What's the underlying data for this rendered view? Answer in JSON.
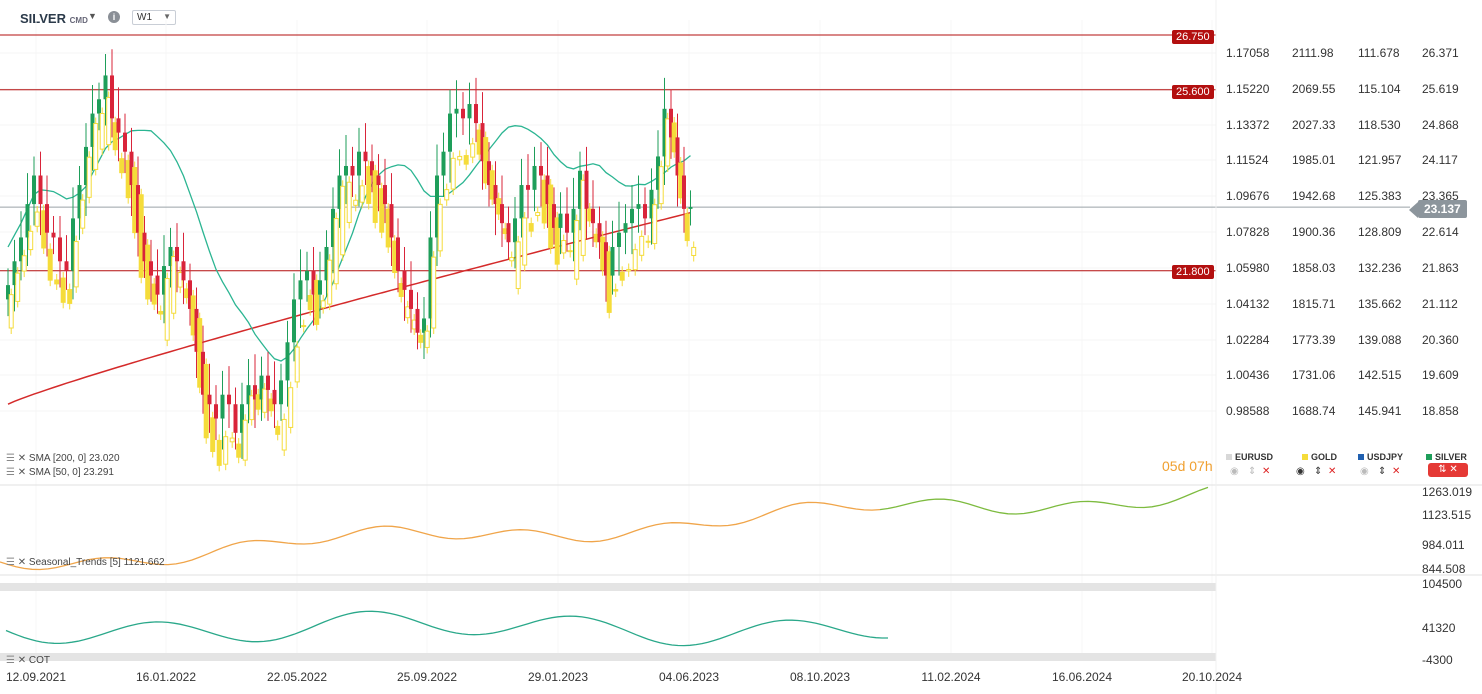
{
  "header": {
    "symbol": "SILVER",
    "symbol_suffix": "CMD",
    "timeframe": "W1"
  },
  "price_levels": [
    {
      "label": "26.750",
      "value": 26.75
    },
    {
      "label": "25.600",
      "value": 25.6
    },
    {
      "label": "21.800",
      "value": 21.8
    }
  ],
  "current_price": {
    "label": "23.137",
    "value": 23.137
  },
  "countdown": "05d 07h",
  "axes": {
    "eurusd": [
      "1.17058",
      "1.15220",
      "1.13372",
      "1.11524",
      "1.09676",
      "1.07828",
      "1.05980",
      "1.04132",
      "1.02284",
      "1.00436",
      "0.98588"
    ],
    "gold": [
      "2111.98",
      "2069.55",
      "2027.33",
      "1985.01",
      "1942.68",
      "1900.36",
      "1858.03",
      "1815.71",
      "1773.39",
      "1731.06",
      "1688.74"
    ],
    "usdjpy": [
      "111.678",
      "115.104",
      "118.530",
      "121.957",
      "125.383",
      "128.809",
      "132.236",
      "135.662",
      "139.088",
      "142.515",
      "145.941"
    ],
    "silver": [
      "26.371",
      "25.619",
      "24.868",
      "24.117",
      "23.365",
      "22.614",
      "21.863",
      "21.112",
      "20.360",
      "19.609",
      "18.858"
    ],
    "seasonal": [
      "1263.019",
      "1123.515",
      "984.011",
      "844.508"
    ],
    "cot": [
      "104500",
      "41320",
      "-4300"
    ]
  },
  "indicators": {
    "sma200": "SMA [200, 0]  23.020",
    "sma50": "SMA [50, 0]  23.291",
    "seasonal": "Seasonal_Trends [5]  1121.662",
    "cot": "COT"
  },
  "instruments": [
    "EURUSD",
    "GOLD",
    "USDJPY",
    "SILVER"
  ],
  "colors": {
    "bull_green": "#1e9e5a",
    "bear_red": "#d9243a",
    "gold_yellow": "#f5dc3a",
    "sma200": "#d42a2a",
    "sma50": "#2bb592",
    "seasonal_orange": "#f0a54a",
    "seasonal_green": "#7dbb3f",
    "cot_teal": "#2aa88a",
    "level_line": "#b30f0f"
  },
  "dates": [
    "12.09.2021",
    "16.01.2022",
    "22.05.2022",
    "25.09.2022",
    "29.01.2023",
    "04.06.2023",
    "08.10.2023",
    "11.02.2024",
    "16.06.2024",
    "20.10.2024"
  ],
  "chart_data": {
    "type": "candlestick",
    "title": "SILVER CMD",
    "timeframe": "W1",
    "ylim": [
      18.858,
      26.75
    ],
    "silver_weekly_close": [
      21.5,
      22.0,
      22.5,
      23.2,
      23.8,
      23.2,
      22.6,
      22.5,
      22.0,
      21.8,
      22.9,
      23.6,
      24.4,
      25.1,
      25.4,
      25.9,
      25.0,
      24.7,
      24.3,
      23.6,
      22.6,
      22.0,
      21.7,
      21.3,
      21.9,
      22.3,
      22.0,
      21.6,
      21.0,
      20.1,
      19.2,
      19.0,
      18.7,
      19.2,
      19.0,
      18.4,
      19.0,
      19.4,
      19.1,
      19.6,
      19.3,
      19.0,
      19.5,
      20.3,
      21.2,
      21.6,
      21.8,
      21.3,
      21.6,
      22.3,
      23.1,
      23.8,
      24.0,
      23.8,
      24.3,
      24.1,
      23.8,
      23.6,
      23.2,
      22.5,
      21.8,
      21.4,
      21.0,
      20.5,
      20.8,
      22.5,
      23.8,
      24.3,
      25.1,
      25.2,
      25.0,
      25.3,
      24.9,
      24.1,
      23.6,
      23.2,
      22.8,
      22.4,
      22.9,
      23.6,
      23.5,
      24.0,
      23.8,
      23.2,
      22.7,
      23.0,
      22.6,
      23.1,
      23.9,
      23.1,
      22.8,
      22.4,
      21.7,
      22.3,
      22.6,
      22.8,
      23.1,
      23.2,
      22.9,
      23.5,
      24.2,
      25.2,
      24.6,
      23.8,
      23.1,
      23.137
    ],
    "sma200": {
      "name": "SMA [200, 0]",
      "current": 23.02
    },
    "sma50": {
      "name": "SMA [50, 0]",
      "current": 23.291
    },
    "levels": [
      26.75,
      25.6,
      21.8
    ]
  }
}
